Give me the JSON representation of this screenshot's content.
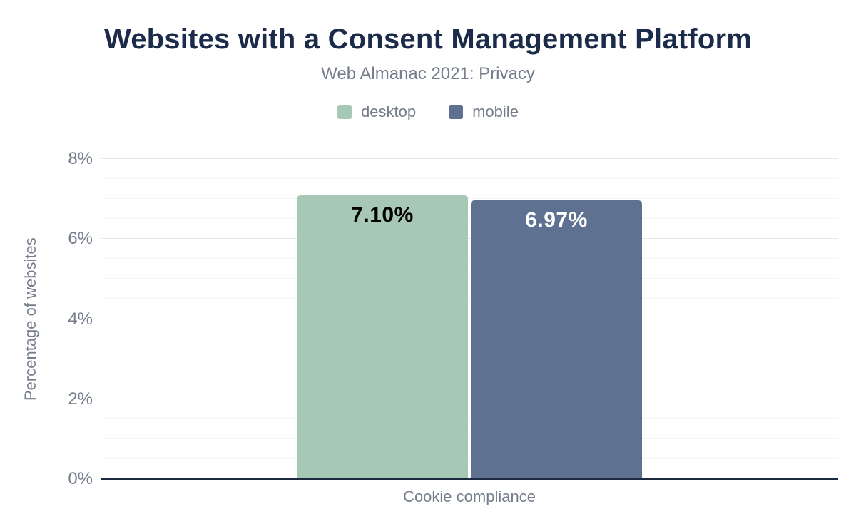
{
  "colors": {
    "title-navy": "#1c2b4a",
    "axis-navy": "#1b2a41",
    "muted-text": "#757d8c",
    "desktop-green": "#a6c8b5",
    "mobile-slate": "#5f7190"
  },
  "chart_data": {
    "type": "bar",
    "title": "Websites with a Consent Management Platform",
    "subtitle": "Web Almanac 2021: Privacy",
    "categories": [
      "Cookie compliance"
    ],
    "series": [
      {
        "name": "desktop",
        "values": [
          7.1
        ],
        "data_labels": [
          "7.10%"
        ],
        "color": "#a6c8b5",
        "label_color": "#000000"
      },
      {
        "name": "mobile",
        "values": [
          6.97
        ],
        "data_labels": [
          "6.97%"
        ],
        "color": "#5f7190",
        "label_color": "#ffffff"
      }
    ],
    "xlabel": "Cookie compliance",
    "ylabel": "Percentage of websites",
    "ylim": [
      0,
      8
    ],
    "ytick_values": [
      0,
      2,
      4,
      6,
      8
    ],
    "ytick_labels": [
      "0%",
      "2%",
      "4%",
      "6%",
      "8%"
    ],
    "ytick_step_minor": 0.5,
    "grid": "horizontal",
    "legend_position": "top"
  }
}
